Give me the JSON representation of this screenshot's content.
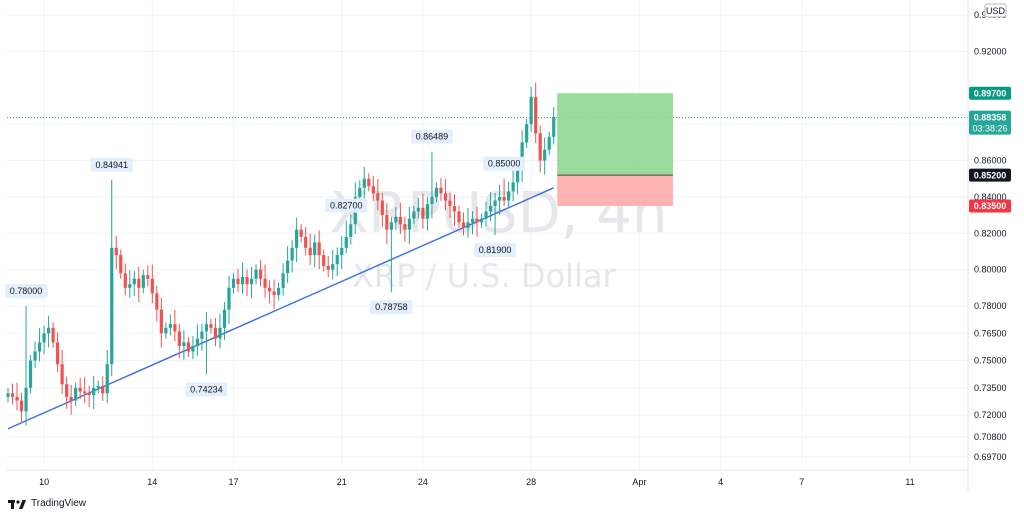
{
  "watermark": {
    "symbol": "XRPUSD, 4h",
    "name": "XRP / U.S. Dollar"
  },
  "currency": "USD",
  "brand": "TradingView",
  "colors": {
    "up": "#26a69a",
    "down": "#ef5350",
    "trend": "#3a6ee8",
    "profit": "#8fd68f",
    "loss": "#ffb0b0",
    "last": "#26a69a"
  },
  "chart_data": {
    "type": "candlestick",
    "interval": "4h",
    "ylim": [
      0.692,
      0.945
    ],
    "y_ticks": [
      "0.94000",
      "0.92000",
      "0.88000",
      "0.86000",
      "0.84000",
      "0.82000",
      "0.80000",
      "0.78000",
      "0.76500",
      "0.75000",
      "0.73500",
      "0.72000",
      "0.70800",
      "0.69700"
    ],
    "x_ticks": [
      {
        "label": "10",
        "i": 8
      },
      {
        "label": "14",
        "i": 32
      },
      {
        "label": "17",
        "i": 50
      },
      {
        "label": "21",
        "i": 74
      },
      {
        "label": "24",
        "i": 92
      },
      {
        "label": "28",
        "i": 116
      },
      {
        "label": "Apr",
        "i": 140
      },
      {
        "label": "4",
        "i": 158
      },
      {
        "label": "7",
        "i": 176
      },
      {
        "label": "11",
        "i": 200
      }
    ],
    "closes": [
      0.732,
      0.73,
      0.728,
      0.722,
      0.735,
      0.75,
      0.755,
      0.76,
      0.765,
      0.768,
      0.76,
      0.748,
      0.737,
      0.73,
      0.728,
      0.735,
      0.733,
      0.732,
      0.731,
      0.735,
      0.736,
      0.732,
      0.748,
      0.812,
      0.808,
      0.798,
      0.79,
      0.792,
      0.795,
      0.79,
      0.797,
      0.795,
      0.787,
      0.778,
      0.765,
      0.768,
      0.77,
      0.766,
      0.758,
      0.76,
      0.755,
      0.758,
      0.762,
      0.766,
      0.77,
      0.768,
      0.762,
      0.768,
      0.778,
      0.79,
      0.795,
      0.792,
      0.796,
      0.792,
      0.795,
      0.8,
      0.795,
      0.79,
      0.788,
      0.786,
      0.79,
      0.798,
      0.805,
      0.812,
      0.822,
      0.818,
      0.812,
      0.808,
      0.815,
      0.808,
      0.802,
      0.8,
      0.803,
      0.808,
      0.812,
      0.818,
      0.825,
      0.84,
      0.845,
      0.85,
      0.846,
      0.842,
      0.838,
      0.83,
      0.822,
      0.826,
      0.829,
      0.825,
      0.822,
      0.828,
      0.832,
      0.834,
      0.828,
      0.836,
      0.84,
      0.845,
      0.842,
      0.838,
      0.835,
      0.832,
      0.826,
      0.823,
      0.826,
      0.828,
      0.826,
      0.828,
      0.832,
      0.835,
      0.838,
      0.84,
      0.838,
      0.843,
      0.848,
      0.856,
      0.87,
      0.88,
      0.895,
      0.875,
      0.86,
      0.866,
      0.873,
      0.884
    ],
    "extremes": [
      {
        "i": 4,
        "price": 0.78,
        "label": "0.78000",
        "kind": "high"
      },
      {
        "i": 23,
        "price": 0.84941,
        "label": "0.84941",
        "kind": "high"
      },
      {
        "i": 44,
        "price": 0.74234,
        "label": "0.74234",
        "kind": "low"
      },
      {
        "i": 75,
        "price": 0.827,
        "label": "0.82700",
        "kind": "high"
      },
      {
        "i": 85,
        "price": 0.78758,
        "label": "0.78758",
        "kind": "low"
      },
      {
        "i": 94,
        "price": 0.86489,
        "label": "0.86489",
        "kind": "high"
      },
      {
        "i": 108,
        "price": 0.819,
        "label": "0.81900",
        "kind": "low"
      },
      {
        "i": 110,
        "price": 0.85,
        "label": "0.85000",
        "kind": "high"
      }
    ],
    "trendline": {
      "start": {
        "i": 0,
        "price": 0.7125
      },
      "end": {
        "i": 121,
        "price": 0.845
      }
    },
    "position": {
      "entry": 0.852,
      "target": 0.897,
      "stop": 0.835,
      "entry_label": "0.85200",
      "target_label": "0.89700",
      "stop_label": "0.83500",
      "start_i": 122,
      "end_i": 147
    },
    "last_price": {
      "value": 0.88358,
      "label": "0.88358",
      "countdown": "03:38:26"
    }
  }
}
